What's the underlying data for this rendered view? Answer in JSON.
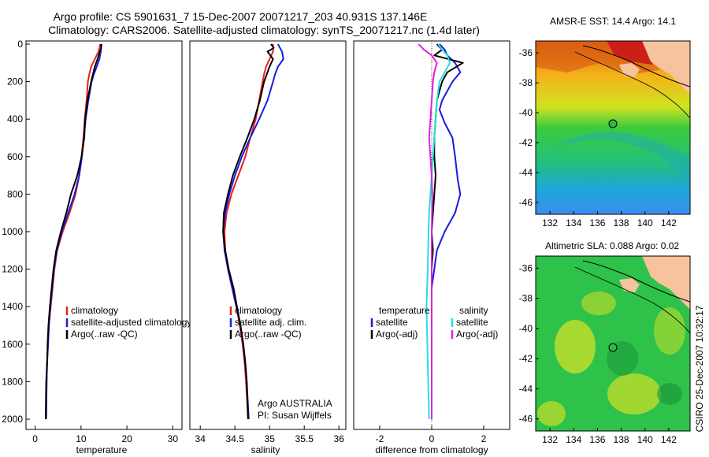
{
  "header": {
    "line1": "Argo profile: CS 5901631_7 15-Dec-2007 20071217_203 40.931S 137.146E",
    "line2": "Climatology: CARS2006. Satellite-adjusted climatology: synTS_20071217.nc (1.4d later)"
  },
  "side_label": "CSIRO 25-Dec-2007 10:32:17",
  "colors": {
    "climatology": "#e8201b",
    "satellite": "#1a1adf",
    "argo": "#000000",
    "cyan": "#22e0e0",
    "magenta": "#e020e0",
    "land": "#f6c39e"
  },
  "chart_data": [
    {
      "type": "line",
      "xlabel": "temperature",
      "ylabel": "",
      "xlim": [
        -2,
        32
      ],
      "ylim": [
        2060,
        0
      ],
      "xticks": [
        0,
        10,
        20,
        30
      ],
      "yticks": [
        0,
        200,
        400,
        600,
        800,
        1000,
        1200,
        1400,
        1600,
        1800,
        2000
      ],
      "legend": [
        "climatology",
        "satellite-adjusted climatology",
        "Argo(..raw -QC)"
      ],
      "annotations": [],
      "series": [
        {
          "name": "climatology",
          "color": "climatology",
          "x": [
            14.2,
            14.0,
            13.8,
            13.0,
            12.2,
            11.8,
            11.5,
            11.2,
            10.8,
            10.5,
            10.1,
            9.6,
            8.8,
            7.5,
            6.0,
            4.8,
            4.2,
            3.8,
            3.4,
            3.0,
            2.8,
            2.6,
            2.5,
            2.4
          ],
          "y": [
            0,
            20,
            40,
            80,
            120,
            160,
            200,
            300,
            400,
            500,
            600,
            700,
            800,
            900,
            1000,
            1100,
            1200,
            1300,
            1400,
            1500,
            1600,
            1700,
            1800,
            2000
          ]
        },
        {
          "name": "satellite-adjusted climatology",
          "color": "satellite",
          "x": [
            14.5,
            14.4,
            14.3,
            14.0,
            13.4,
            12.8,
            12.3,
            11.6,
            11.0,
            10.6,
            10.2,
            9.6,
            8.6,
            7.2,
            5.8,
            4.7,
            4.1,
            3.7,
            3.3,
            3.0,
            2.8,
            2.6,
            2.5,
            2.4
          ],
          "y": [
            0,
            20,
            40,
            80,
            120,
            160,
            200,
            300,
            400,
            500,
            600,
            700,
            800,
            900,
            1000,
            1100,
            1200,
            1300,
            1400,
            1500,
            1600,
            1700,
            1800,
            2000
          ]
        },
        {
          "name": "Argo(..raw -QC)",
          "color": "argo",
          "x": [
            14.3,
            14.4,
            14.1,
            13.6,
            13.0,
            12.6,
            12.2,
            11.4,
            10.9,
            10.7,
            10.1,
            9.2,
            7.8,
            6.8,
            5.6,
            4.6,
            4.0,
            3.6,
            3.2,
            2.9,
            2.7,
            2.6,
            2.4,
            2.3
          ],
          "y": [
            0,
            20,
            40,
            80,
            120,
            160,
            200,
            300,
            400,
            500,
            600,
            700,
            800,
            900,
            1000,
            1100,
            1200,
            1300,
            1400,
            1500,
            1600,
            1700,
            1800,
            2000
          ]
        }
      ]
    },
    {
      "type": "line",
      "xlabel": "salinity",
      "ylabel": "",
      "xlim": [
        33.85,
        36.1
      ],
      "ylim": [
        2060,
        0
      ],
      "xticks": [
        34,
        34.5,
        35,
        35.5,
        36
      ],
      "yticks": [],
      "legend": [
        "climatology",
        "satellite adj. clim.",
        "Argo(..raw -QC)"
      ],
      "annotations": [
        "Argo AUSTRALIA",
        "PI: Susan Wijffels"
      ],
      "series": [
        {
          "name": "climatology",
          "color": "climatology",
          "x": [
            35.05,
            35.05,
            35.05,
            35.0,
            34.95,
            34.92,
            34.9,
            34.85,
            34.8,
            34.72,
            34.65,
            34.55,
            34.45,
            34.38,
            34.35,
            34.36,
            34.4,
            34.46,
            34.52,
            34.57,
            34.61,
            34.64,
            34.66,
            34.69
          ],
          "y": [
            0,
            20,
            40,
            80,
            120,
            160,
            200,
            300,
            400,
            500,
            600,
            700,
            800,
            900,
            1000,
            1100,
            1200,
            1300,
            1400,
            1500,
            1600,
            1700,
            1800,
            2000
          ]
        },
        {
          "name": "satellite adj. clim.",
          "color": "satellite",
          "x": [
            35.12,
            35.15,
            35.18,
            35.2,
            35.12,
            35.08,
            35.05,
            34.97,
            34.85,
            34.72,
            34.6,
            34.5,
            34.42,
            34.36,
            34.33,
            34.35,
            34.4,
            34.46,
            34.52,
            34.58,
            34.62,
            34.65,
            34.67,
            34.7
          ],
          "y": [
            0,
            20,
            40,
            80,
            120,
            160,
            200,
            300,
            400,
            500,
            600,
            700,
            800,
            900,
            1000,
            1100,
            1200,
            1300,
            1400,
            1500,
            1600,
            1700,
            1800,
            2000
          ]
        },
        {
          "name": "Argo(..raw -QC)",
          "color": "argo",
          "x": [
            35.02,
            35.06,
            34.97,
            35.05,
            35.0,
            34.96,
            34.92,
            34.86,
            34.78,
            34.68,
            34.57,
            34.47,
            34.4,
            34.34,
            34.33,
            34.36,
            34.41,
            34.48,
            34.53,
            34.58,
            34.62,
            34.65,
            34.67,
            34.69
          ],
          "y": [
            0,
            20,
            40,
            80,
            120,
            160,
            200,
            300,
            400,
            500,
            600,
            700,
            800,
            900,
            1000,
            1100,
            1200,
            1300,
            1400,
            1500,
            1600,
            1700,
            1800,
            2000
          ]
        }
      ]
    },
    {
      "type": "line",
      "xlabel": "difference from climatology",
      "ylabel": "",
      "xlim": [
        -3,
        3
      ],
      "ylim": [
        2060,
        0
      ],
      "xticks": [
        -2,
        0,
        2
      ],
      "yticks": [],
      "legend": [
        "temperature",
        "satellite",
        "Argo(-adj)",
        "salinity",
        "satellite",
        "Argo(-adj)"
      ],
      "annotations": [],
      "series": [
        {
          "name": "temperature satellite",
          "color": "satellite",
          "x": [
            0.3,
            0.5,
            0.6,
            0.9,
            1.1,
            0.8,
            0.6,
            0.4,
            0.3,
            0.5,
            0.8,
            0.9,
            1.0,
            1.1,
            0.9,
            0.5,
            0.2,
            0.1,
            0.0,
            0.0,
            0.0,
            0.0,
            0.0,
            0.0
          ],
          "y": [
            0,
            30,
            60,
            100,
            150,
            200,
            250,
            300,
            350,
            420,
            500,
            600,
            720,
            800,
            900,
            1000,
            1100,
            1200,
            1300,
            1400,
            1500,
            1600,
            1800,
            2000
          ]
        },
        {
          "name": "temperature Argo(-adj)",
          "color": "argo",
          "x": [
            0.2,
            0.4,
            0.1,
            1.2,
            0.6,
            0.4,
            0.3,
            0.2,
            0.15,
            0.1,
            0.1,
            0.15,
            0.1,
            0.05,
            0.0,
            0.05,
            0.0,
            0.0,
            0.0,
            0.0
          ],
          "y": [
            0,
            30,
            60,
            100,
            150,
            200,
            250,
            300,
            400,
            500,
            600,
            700,
            800,
            900,
            1000,
            1100,
            1200,
            1400,
            1600,
            2000
          ]
        },
        {
          "name": "salinity satellite",
          "color": "cyan",
          "x": [
            0.25,
            0.4,
            0.6,
            0.7,
            0.5,
            0.3,
            0.2,
            0.15,
            0.1,
            0.05,
            0.0,
            -0.05,
            -0.1,
            -0.12,
            -0.15,
            -0.2,
            -0.15,
            -0.1
          ],
          "y": [
            0,
            30,
            60,
            100,
            150,
            200,
            300,
            400,
            500,
            600,
            700,
            800,
            900,
            1000,
            1200,
            1400,
            1700,
            2000
          ]
        },
        {
          "name": "salinity Argo(-adj)",
          "color": "magenta",
          "x": [
            -0.5,
            -0.3,
            0.0,
            0.2,
            0.1,
            0.05,
            0.0,
            -0.05,
            -0.1,
            0.0,
            0.02,
            0.0,
            0.0,
            0.0,
            0.0
          ],
          "y": [
            0,
            30,
            60,
            100,
            150,
            200,
            300,
            400,
            500,
            700,
            800,
            1000,
            1200,
            1600,
            2000
          ]
        }
      ]
    }
  ],
  "maps": [
    {
      "title": "AMSR-E SST: 14.4 Argo: 14.1",
      "xticks": [
        "132",
        "134",
        "136",
        "138",
        "140",
        "142"
      ],
      "yticks": [
        "-36",
        "-38",
        "-40",
        "-42",
        "-44",
        "-46"
      ],
      "marker": {
        "lon": 137.15,
        "lat": -40.93
      }
    },
    {
      "title": "Altimetric SLA: 0.088 Argo: 0.02",
      "xticks": [
        "132",
        "134",
        "136",
        "138",
        "140",
        "142"
      ],
      "yticks": [
        "-36",
        "-38",
        "-40",
        "-42",
        "-44",
        "-46"
      ],
      "marker": {
        "lon": 137.15,
        "lat": -40.93
      }
    }
  ]
}
